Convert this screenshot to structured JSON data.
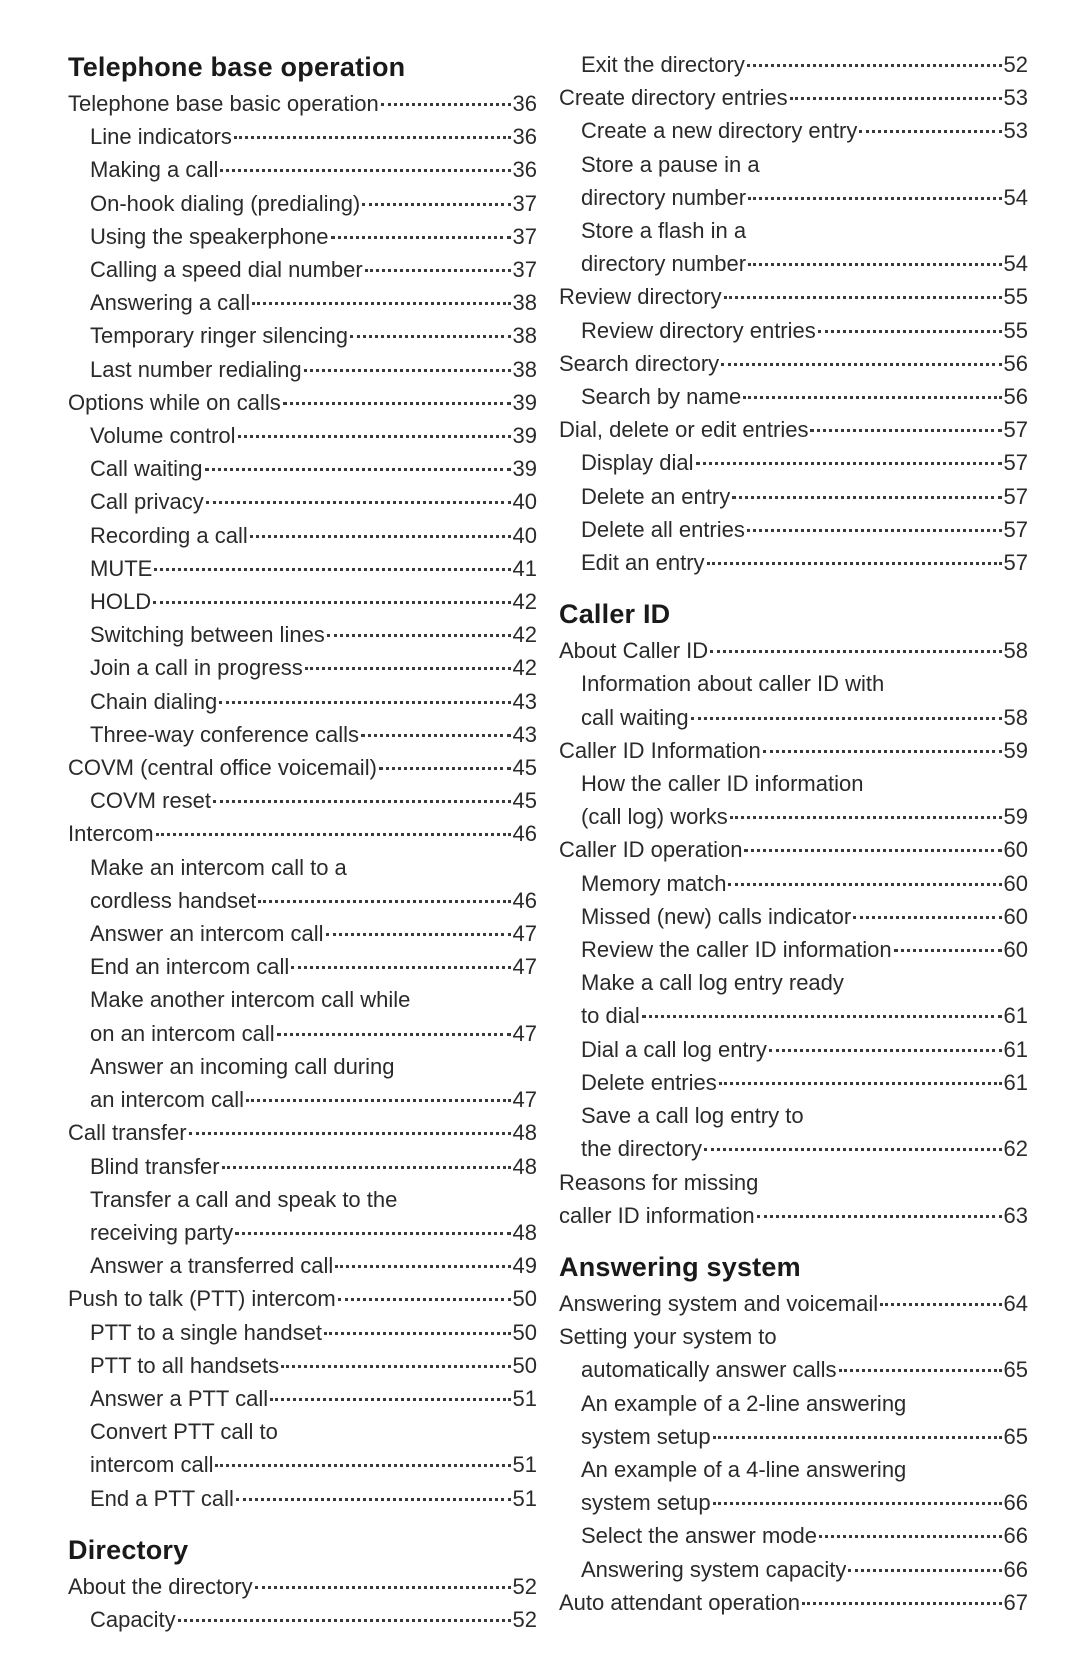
{
  "left": {
    "sections": [
      {
        "heading": "Telephone base operation",
        "entries": [
          {
            "label": "Telephone base basic operation",
            "page": 36,
            "indent": 0
          },
          {
            "label": "Line indicators",
            "page": 36,
            "indent": 1
          },
          {
            "label": "Making a call",
            "page": 36,
            "indent": 1
          },
          {
            "label": "On-hook dialing (predialing)",
            "page": 37,
            "indent": 1
          },
          {
            "label": "Using the speakerphone",
            "page": 37,
            "indent": 1
          },
          {
            "label": "Calling a speed dial number",
            "page": 37,
            "indent": 1
          },
          {
            "label": "Answering a call",
            "page": 38,
            "indent": 1
          },
          {
            "label": "Temporary ringer silencing",
            "page": 38,
            "indent": 1
          },
          {
            "label": "Last number redialing",
            "page": 38,
            "indent": 1
          },
          {
            "label": "Options while on calls",
            "page": 39,
            "indent": 0
          },
          {
            "label": "Volume control",
            "page": 39,
            "indent": 1
          },
          {
            "label": "Call waiting",
            "page": 39,
            "indent": 1
          },
          {
            "label": "Call privacy",
            "page": 40,
            "indent": 1
          },
          {
            "label": "Recording a call",
            "page": 40,
            "indent": 1
          },
          {
            "label": "MUTE",
            "page": 41,
            "indent": 1
          },
          {
            "label": "HOLD",
            "page": 42,
            "indent": 1
          },
          {
            "label": "Switching between lines",
            "page": 42,
            "indent": 1
          },
          {
            "label": "Join a call in progress",
            "page": 42,
            "indent": 1
          },
          {
            "label": "Chain dialing",
            "page": 43,
            "indent": 1
          },
          {
            "label": "Three-way conference calls",
            "page": 43,
            "indent": 1
          },
          {
            "label": "COVM (central office voicemail)",
            "page": 45,
            "indent": 0
          },
          {
            "label": "COVM reset",
            "page": 45,
            "indent": 1
          },
          {
            "label": "Intercom",
            "page": 46,
            "indent": 0
          },
          {
            "cont": "Make an intercom call to a",
            "indent": 1
          },
          {
            "label": "cordless handset",
            "page": 46,
            "indent": 1
          },
          {
            "label": "Answer an intercom call",
            "page": 47,
            "indent": 1
          },
          {
            "label": "End an intercom call",
            "page": 47,
            "indent": 1
          },
          {
            "cont": "Make another intercom call while",
            "indent": 1
          },
          {
            "label": "on an intercom call",
            "page": 47,
            "indent": 1
          },
          {
            "cont": "Answer an incoming call during",
            "indent": 1
          },
          {
            "label": "an intercom call",
            "page": 47,
            "indent": 1
          },
          {
            "label": "Call transfer",
            "page": 48,
            "indent": 0
          },
          {
            "label": "Blind transfer",
            "page": 48,
            "indent": 1
          },
          {
            "cont": "Transfer a call and speak to the",
            "indent": 1
          },
          {
            "label": "receiving party",
            "page": 48,
            "indent": 1
          },
          {
            "label": "Answer a transferred call",
            "page": 49,
            "indent": 1
          },
          {
            "label": "Push to talk (PTT) intercom",
            "page": 50,
            "indent": 0
          },
          {
            "label": "PTT to a single handset",
            "page": 50,
            "indent": 1
          },
          {
            "label": "PTT to all handsets",
            "page": 50,
            "indent": 1
          },
          {
            "label": "Answer a PTT call",
            "page": 51,
            "indent": 1
          },
          {
            "cont": "Convert PTT call to",
            "indent": 1
          },
          {
            "label": "intercom call",
            "page": 51,
            "indent": 1
          },
          {
            "label": "End a PTT call",
            "page": 51,
            "indent": 1
          }
        ]
      },
      {
        "heading": "Directory",
        "padTop": true,
        "entries": [
          {
            "label": "About the directory",
            "page": 52,
            "indent": 0
          },
          {
            "label": "Capacity",
            "page": 52,
            "indent": 1
          }
        ]
      }
    ]
  },
  "right": {
    "sections": [
      {
        "entries": [
          {
            "label": "Exit the directory",
            "page": 52,
            "indent": 1
          },
          {
            "label": "Create directory entries",
            "page": 53,
            "indent": 0
          },
          {
            "label": "Create a new directory entry",
            "page": 53,
            "indent": 1
          },
          {
            "cont": "Store a pause in a",
            "indent": 1
          },
          {
            "label": "directory number",
            "page": 54,
            "indent": 1
          },
          {
            "cont": "Store a flash in a",
            "indent": 1
          },
          {
            "label": "directory number",
            "page": 54,
            "indent": 1
          },
          {
            "label": "Review directory",
            "page": 55,
            "indent": 0
          },
          {
            "label": "Review directory entries",
            "page": 55,
            "indent": 1
          },
          {
            "label": "Search directory",
            "page": 56,
            "indent": 0
          },
          {
            "label": "Search by name",
            "page": 56,
            "indent": 1
          },
          {
            "label": "Dial, delete or edit entries",
            "page": 57,
            "indent": 0
          },
          {
            "label": "Display dial",
            "page": 57,
            "indent": 1
          },
          {
            "label": "Delete an entry",
            "page": 57,
            "indent": 1
          },
          {
            "label": "Delete all entries",
            "page": 57,
            "indent": 1
          },
          {
            "label": "Edit an entry",
            "page": 57,
            "indent": 1
          }
        ]
      },
      {
        "heading": "Caller ID",
        "padTop": true,
        "entries": [
          {
            "label": "About Caller ID",
            "page": 58,
            "indent": 0
          },
          {
            "cont": "Information about caller ID with",
            "indent": 1
          },
          {
            "label": "call waiting",
            "page": 58,
            "indent": 1
          },
          {
            "label": "Caller ID Information",
            "page": 59,
            "indent": 0
          },
          {
            "cont": "How the caller ID information",
            "indent": 1
          },
          {
            "label": "(call log) works",
            "page": 59,
            "indent": 1
          },
          {
            "label": "Caller ID operation",
            "page": 60,
            "indent": 0
          },
          {
            "label": "Memory match",
            "page": 60,
            "indent": 1
          },
          {
            "label": "Missed (new) calls indicator",
            "page": 60,
            "indent": 1
          },
          {
            "label": "Review the caller ID information",
            "page": 60,
            "indent": 1
          },
          {
            "cont": "Make a call log entry ready",
            "indent": 1
          },
          {
            "label": "to dial",
            "page": 61,
            "indent": 1
          },
          {
            "label": "Dial a call log entry",
            "page": 61,
            "indent": 1
          },
          {
            "label": "Delete entries",
            "page": 61,
            "indent": 1
          },
          {
            "cont": "Save a call log entry to",
            "indent": 1
          },
          {
            "label": "the directory",
            "page": 62,
            "indent": 1
          },
          {
            "cont": "Reasons for missing",
            "indent": 0
          },
          {
            "label": "caller ID information",
            "page": 63,
            "indent": 0
          }
        ]
      },
      {
        "heading": "Answering system",
        "padTop": true,
        "entries": [
          {
            "label": "Answering system and voicemail",
            "page": 64,
            "indent": 0
          },
          {
            "cont": "Setting your system to",
            "indent": 0
          },
          {
            "label": "automatically answer calls",
            "page": 65,
            "indent": 1
          },
          {
            "cont": "An example of a 2-line answering",
            "indent": 1
          },
          {
            "label": "system setup",
            "page": 65,
            "indent": 1
          },
          {
            "cont": "An example of a 4-line answering",
            "indent": 1
          },
          {
            "label": "system setup",
            "page": 66,
            "indent": 1
          },
          {
            "label": "Select the answer mode",
            "page": 66,
            "indent": 1
          },
          {
            "label": "Answering system capacity",
            "page": 66,
            "indent": 1
          },
          {
            "label": "Auto attendant operation",
            "page": 67,
            "indent": 0
          }
        ]
      }
    ]
  }
}
